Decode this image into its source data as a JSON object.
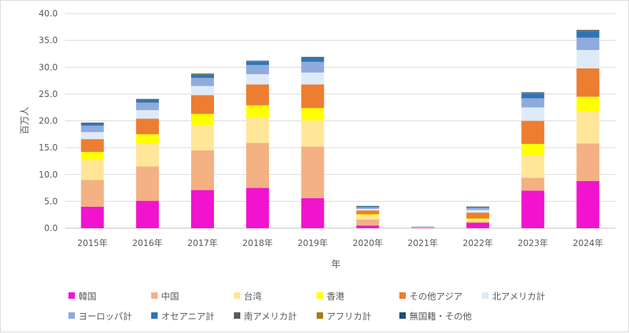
{
  "chart_data": {
    "type": "bar",
    "stacked": true,
    "xlabel": "年",
    "ylabel": "百万人",
    "ylim": [
      0,
      40
    ],
    "yticks": [
      "0.0",
      "5.0",
      "10.0",
      "15.0",
      "20.0",
      "25.0",
      "30.0",
      "35.0",
      "40.0"
    ],
    "grid": true,
    "legend_position": "bottom",
    "categories": [
      "2015年",
      "2016年",
      "2017年",
      "2018年",
      "2019年",
      "2020年",
      "2021年",
      "2022年",
      "2023年",
      "2024年"
    ],
    "series": [
      {
        "name": "韓国",
        "color": "#f213ce",
        "values": [
          4.0,
          5.1,
          7.1,
          7.5,
          5.6,
          0.5,
          0.02,
          1.0,
          7.0,
          8.8
        ]
      },
      {
        "name": "中国",
        "color": "#f4b183",
        "values": [
          5.0,
          6.4,
          7.4,
          8.4,
          9.6,
          1.1,
          0.04,
          0.2,
          2.4,
          7.0
        ]
      },
      {
        "name": "台湾",
        "color": "#ffe699",
        "values": [
          3.7,
          4.2,
          4.6,
          4.8,
          4.9,
          0.7,
          0.01,
          0.3,
          4.2,
          6.0
        ]
      },
      {
        "name": "香港",
        "color": "#ffff00",
        "values": [
          1.5,
          1.8,
          2.2,
          2.2,
          2.3,
          0.3,
          0.0,
          0.3,
          2.1,
          2.7
        ]
      },
      {
        "name": "その他アジア",
        "color": "#ed7d31",
        "values": [
          2.4,
          2.9,
          3.5,
          3.9,
          4.4,
          0.7,
          0.05,
          1.1,
          4.3,
          5.3
        ]
      },
      {
        "name": "北アメリカ計",
        "color": "#deebf7",
        "values": [
          1.3,
          1.6,
          1.7,
          1.9,
          2.2,
          0.3,
          0.03,
          0.5,
          2.5,
          3.4
        ]
      },
      {
        "name": "ヨーロッパ計",
        "color": "#8faadc",
        "values": [
          1.2,
          1.4,
          1.5,
          1.7,
          2.0,
          0.3,
          0.05,
          0.4,
          1.7,
          2.3
        ]
      },
      {
        "name": "オセアニア計",
        "color": "#2e75b6",
        "values": [
          0.4,
          0.5,
          0.6,
          0.6,
          0.7,
          0.2,
          0.01,
          0.15,
          0.9,
          1.2
        ]
      },
      {
        "name": "南アメリカ計",
        "color": "#595959",
        "values": [
          0.05,
          0.05,
          0.06,
          0.07,
          0.07,
          0.01,
          0.0,
          0.02,
          0.08,
          0.1
        ]
      },
      {
        "name": "アフリカ計",
        "color": "#a07f12",
        "values": [
          0.03,
          0.03,
          0.04,
          0.04,
          0.05,
          0.01,
          0.0,
          0.01,
          0.05,
          0.06
        ]
      },
      {
        "name": "無国籍・その他",
        "color": "#1f4e79",
        "values": [
          0.1,
          0.1,
          0.1,
          0.1,
          0.1,
          0.02,
          0.01,
          0.04,
          0.1,
          0.1
        ]
      }
    ]
  }
}
